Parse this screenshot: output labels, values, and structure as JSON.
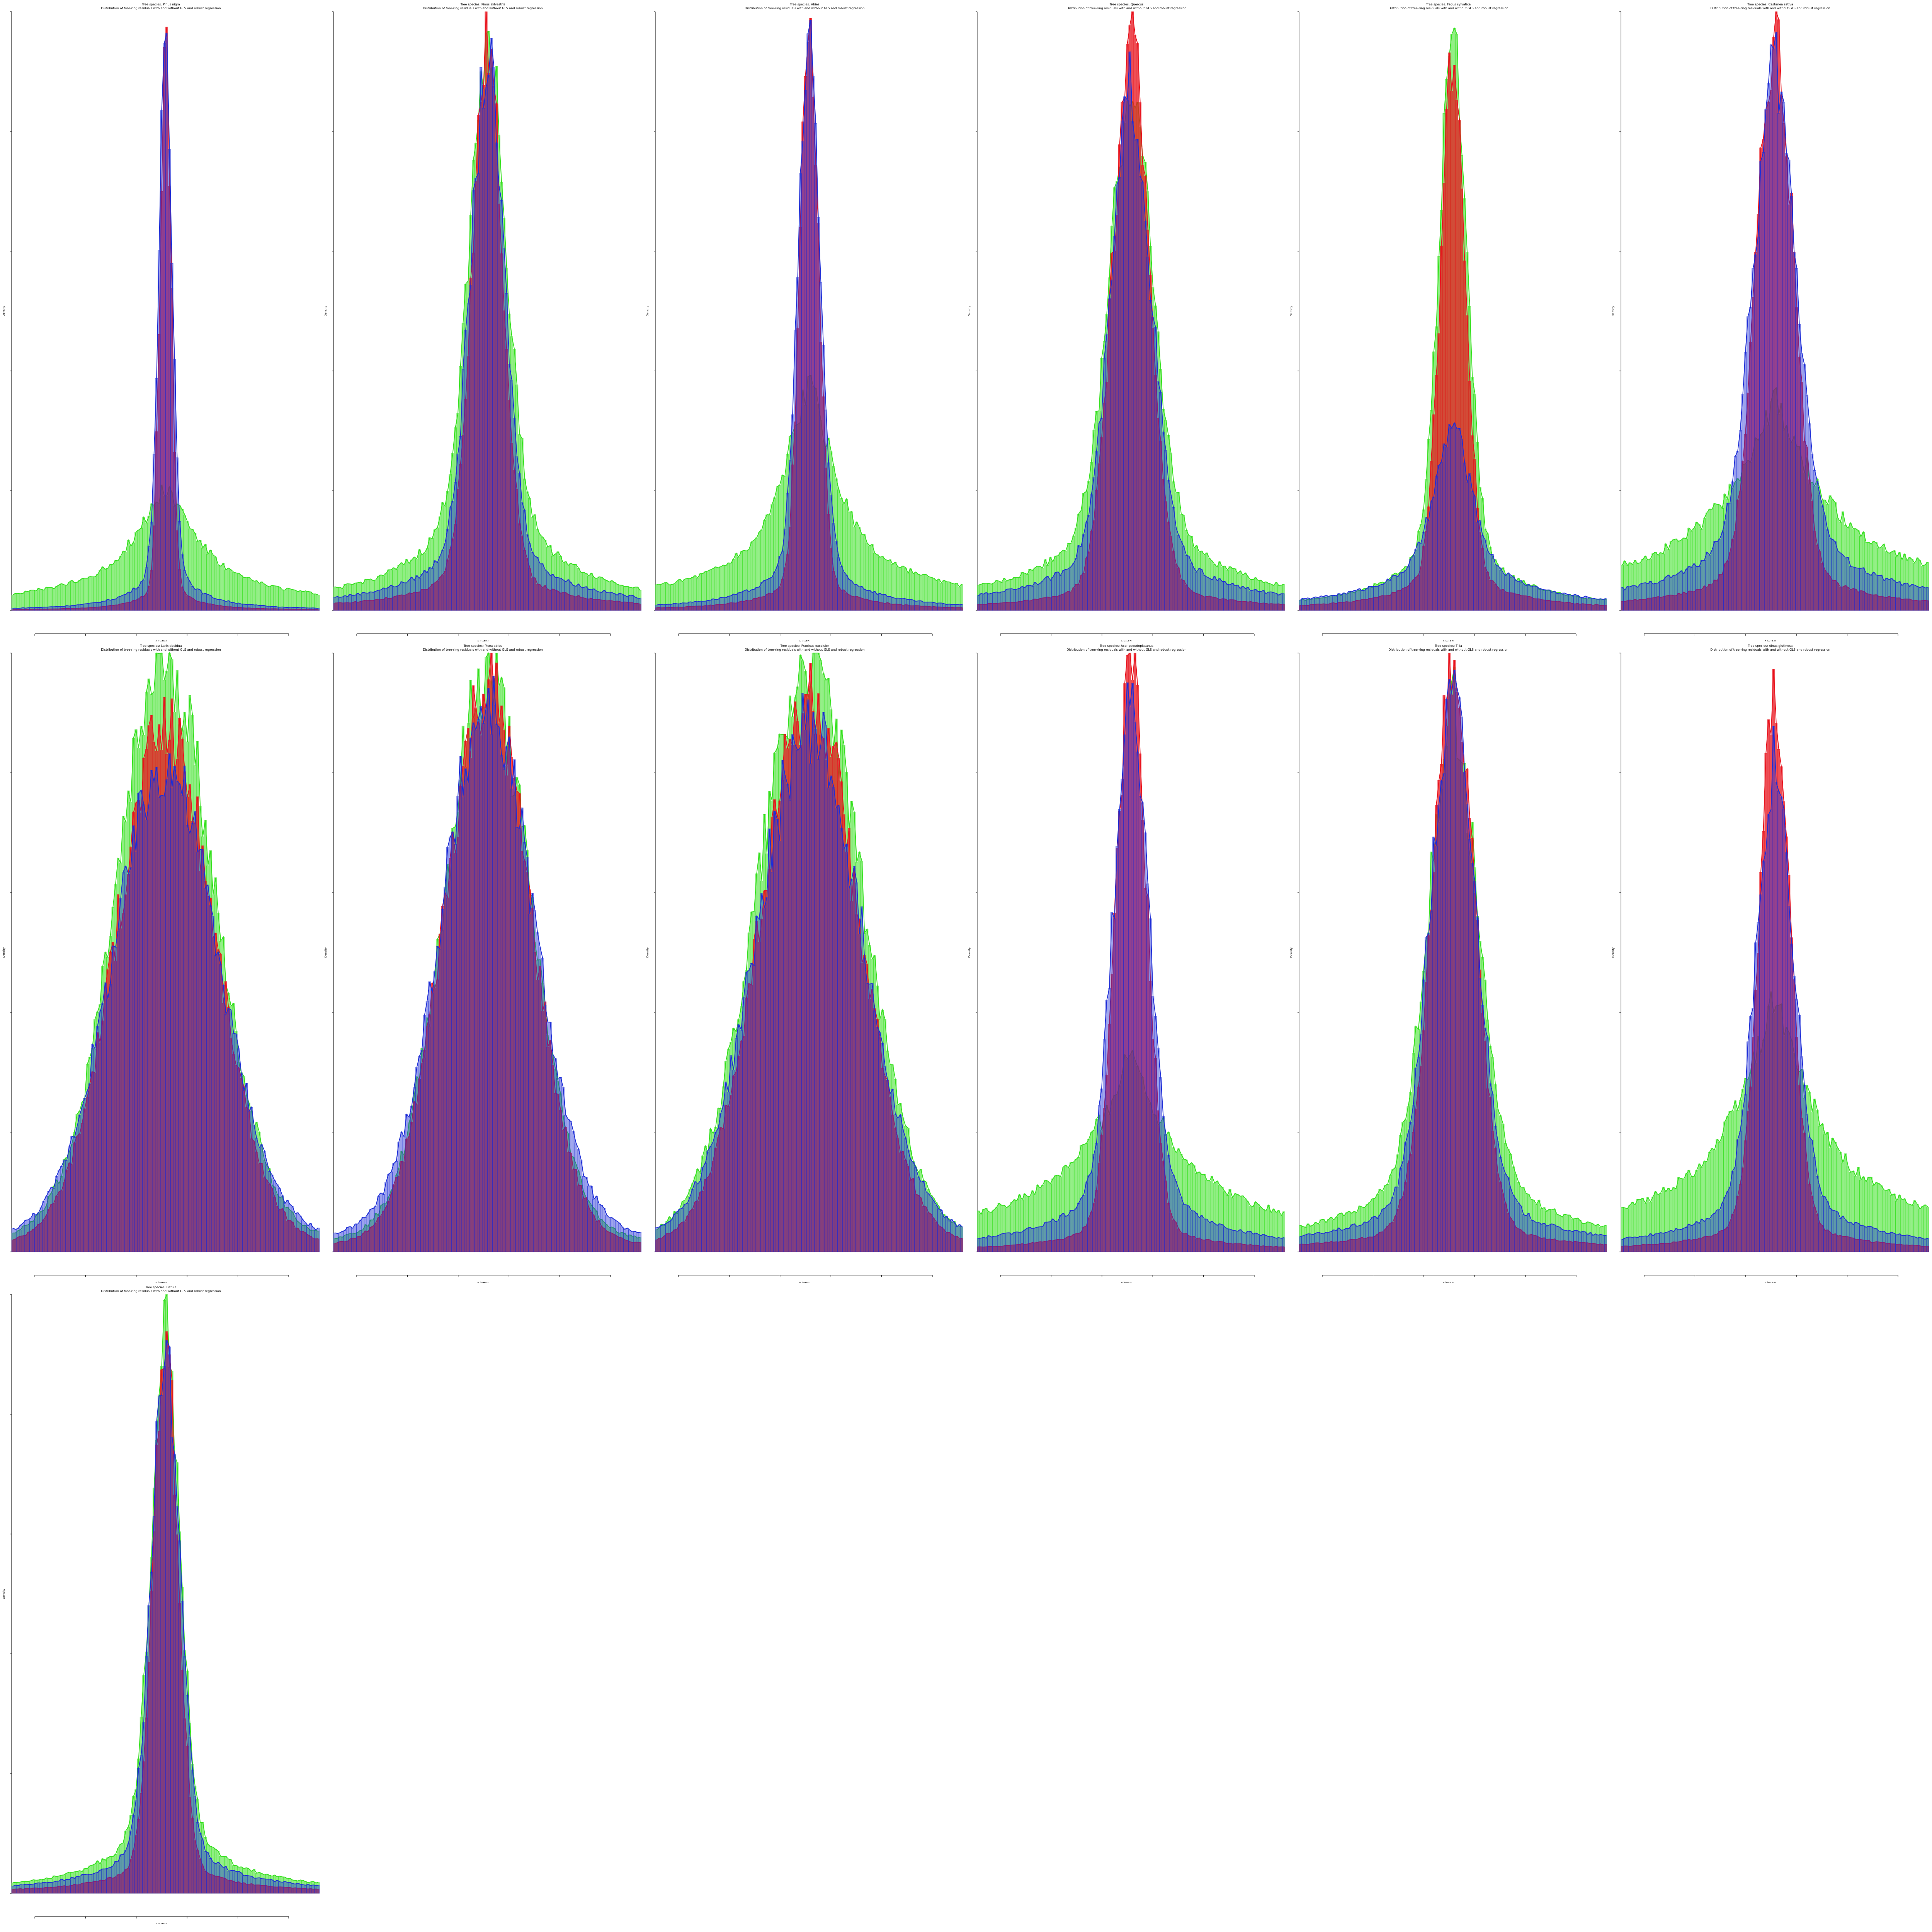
{
  "figure": {
    "subtitle": "Distribution of tree-ring residuals with and without GLS and robust regression",
    "xlabel": "Δ logBAI",
    "ylabel": "Density"
  },
  "legend": [
    {
      "name": "",
      "color": "#e8141e"
    },
    {
      "name": "",
      "color": "#1e2ed6"
    },
    {
      "name": "",
      "color": "#35e01e"
    }
  ],
  "chart_data": [
    {
      "type": "bar",
      "title": "Tree species: Pinus nigra",
      "peak": [
        0.96,
        0.93,
        0.21
      ],
      "width": [
        0.018,
        0.022,
        0.09
      ],
      "tail": [
        0.1,
        0.18,
        0.75
      ]
    },
    {
      "type": "bar",
      "title": "Tree species: Pinus sylvestris",
      "peak": [
        0.95,
        0.93,
        0.99
      ],
      "width": [
        0.05,
        0.055,
        0.06
      ],
      "tail": [
        0.15,
        0.25,
        0.35
      ]
    },
    {
      "type": "bar",
      "title": "Tree species: Abies",
      "peak": [
        0.99,
        0.97,
        0.38
      ],
      "width": [
        0.03,
        0.035,
        0.08
      ],
      "tail": [
        0.12,
        0.2,
        0.7
      ]
    },
    {
      "type": "bar",
      "title": "Tree species: Quercus",
      "peak": [
        0.95,
        0.88,
        0.9
      ],
      "width": [
        0.06,
        0.065,
        0.07
      ],
      "tail": [
        0.1,
        0.25,
        0.35
      ]
    },
    {
      "type": "bar",
      "title": "Tree species: Fagus sylvatica",
      "peak": [
        0.94,
        0.32,
        0.97
      ],
      "width": [
        0.04,
        0.06,
        0.045
      ],
      "tail": [
        0.15,
        0.55,
        0.25
      ]
    },
    {
      "type": "bar",
      "title": "Tree species: Castanea sativa",
      "peak": [
        0.97,
        0.92,
        0.35
      ],
      "width": [
        0.06,
        0.07,
        0.12
      ],
      "tail": [
        0.15,
        0.3,
        0.9
      ]
    },
    {
      "type": "bar",
      "title": "Tree species: Larix decidua",
      "peak": [
        0.88,
        0.82,
        0.99
      ],
      "width": [
        0.16,
        0.17,
        0.16
      ],
      "tail": [
        0.05,
        0.1,
        0.08
      ]
    },
    {
      "type": "bar",
      "title": "Tree species: Picea abies",
      "peak": [
        0.95,
        0.92,
        0.97
      ],
      "width": [
        0.14,
        0.15,
        0.14
      ],
      "tail": [
        0.05,
        0.1,
        0.08
      ]
    },
    {
      "type": "bar",
      "title": "Tree species: Fraxinus excelsior",
      "peak": [
        0.92,
        0.88,
        1.0
      ],
      "width": [
        0.16,
        0.17,
        0.17
      ],
      "tail": [
        0.05,
        0.1,
        0.08
      ]
    },
    {
      "type": "bar",
      "title": "Tree species: Acer pseudoplatanus",
      "peak": [
        0.99,
        0.97,
        0.34
      ],
      "width": [
        0.05,
        0.055,
        0.1
      ],
      "tail": [
        0.1,
        0.25,
        0.95
      ]
    },
    {
      "type": "bar",
      "title": "Tree species: Tilia",
      "peak": [
        0.96,
        0.93,
        0.92
      ],
      "width": [
        0.07,
        0.075,
        0.08
      ],
      "tail": [
        0.1,
        0.2,
        0.3
      ]
    },
    {
      "type": "bar",
      "title": "Tree species: Alnus glutinosa",
      "peak": [
        0.95,
        0.83,
        0.43
      ],
      "width": [
        0.05,
        0.06,
        0.1
      ],
      "tail": [
        0.12,
        0.25,
        0.85
      ]
    },
    {
      "type": "bar",
      "title": "Tree species: Betula",
      "peak": [
        0.95,
        0.92,
        1.0
      ],
      "width": [
        0.04,
        0.045,
        0.045
      ],
      "tail": [
        0.12,
        0.2,
        0.25
      ]
    }
  ]
}
